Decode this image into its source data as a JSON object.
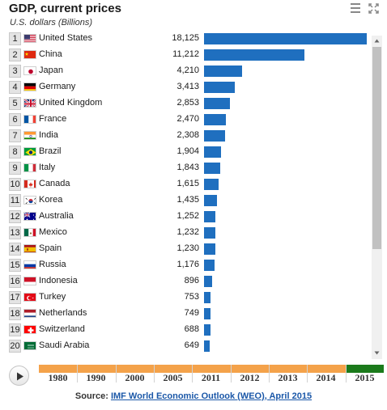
{
  "header": {
    "title": "GDP, current prices",
    "subtitle": "U.S. dollars (Billions)"
  },
  "chart_data": {
    "type": "bar",
    "orientation": "horizontal",
    "title": "GDP, current prices",
    "subtitle": "U.S. dollars (Billions)",
    "xlim": [
      0,
      18125
    ],
    "bar_color": "#1f6fbf",
    "rows": [
      {
        "rank": "1",
        "country": "United States",
        "value": 18125,
        "display": "18,125",
        "flag": "us"
      },
      {
        "rank": "2",
        "country": "China",
        "value": 11212,
        "display": "11,212",
        "flag": "cn"
      },
      {
        "rank": "3",
        "country": "Japan",
        "value": 4210,
        "display": "4,210",
        "flag": "jp"
      },
      {
        "rank": "4",
        "country": "Germany",
        "value": 3413,
        "display": "3,413",
        "flag": "de"
      },
      {
        "rank": "5",
        "country": "United Kingdom",
        "value": 2853,
        "display": "2,853",
        "flag": "gb"
      },
      {
        "rank": "6",
        "country": "France",
        "value": 2470,
        "display": "2,470",
        "flag": "fr"
      },
      {
        "rank": "7",
        "country": "India",
        "value": 2308,
        "display": "2,308",
        "flag": "in"
      },
      {
        "rank": "8",
        "country": "Brazil",
        "value": 1904,
        "display": "1,904",
        "flag": "br"
      },
      {
        "rank": "9",
        "country": "Italy",
        "value": 1843,
        "display": "1,843",
        "flag": "it"
      },
      {
        "rank": "10",
        "country": "Canada",
        "value": 1615,
        "display": "1,615",
        "flag": "ca"
      },
      {
        "rank": "11",
        "country": "Korea",
        "value": 1435,
        "display": "1,435",
        "flag": "kr"
      },
      {
        "rank": "12",
        "country": "Australia",
        "value": 1252,
        "display": "1,252",
        "flag": "au"
      },
      {
        "rank": "13",
        "country": "Mexico",
        "value": 1232,
        "display": "1,232",
        "flag": "mx"
      },
      {
        "rank": "14",
        "country": "Spain",
        "value": 1230,
        "display": "1,230",
        "flag": "es"
      },
      {
        "rank": "15",
        "country": "Russia",
        "value": 1176,
        "display": "1,176",
        "flag": "ru"
      },
      {
        "rank": "16",
        "country": "Indonesia",
        "value": 896,
        "display": "896",
        "flag": "id"
      },
      {
        "rank": "17",
        "country": "Turkey",
        "value": 753,
        "display": "753",
        "flag": "tr"
      },
      {
        "rank": "18",
        "country": "Netherlands",
        "value": 749,
        "display": "749",
        "flag": "nl"
      },
      {
        "rank": "19",
        "country": "Switzerland",
        "value": 688,
        "display": "688",
        "flag": "ch"
      },
      {
        "rank": "20",
        "country": "Saudi Arabia",
        "value": 649,
        "display": "649",
        "flag": "sa"
      }
    ]
  },
  "timeline": {
    "years": [
      "1980",
      "1990",
      "2000",
      "2005",
      "2011",
      "2012",
      "2013",
      "2014",
      "2015"
    ],
    "selected": "2015",
    "track_color": "#f4a24a",
    "selected_color": "#1b7a1b"
  },
  "source": {
    "prefix": "Source: ",
    "link_text": "IMF World Economic Outlook (WEO), April 2015"
  },
  "icons": {
    "menu": "hamburger-menu-icon",
    "expand": "expand-arrows-icon",
    "play": "play-icon",
    "scroll_up": "scroll-up-arrow-icon",
    "scroll_down": "scroll-down-arrow-icon"
  }
}
